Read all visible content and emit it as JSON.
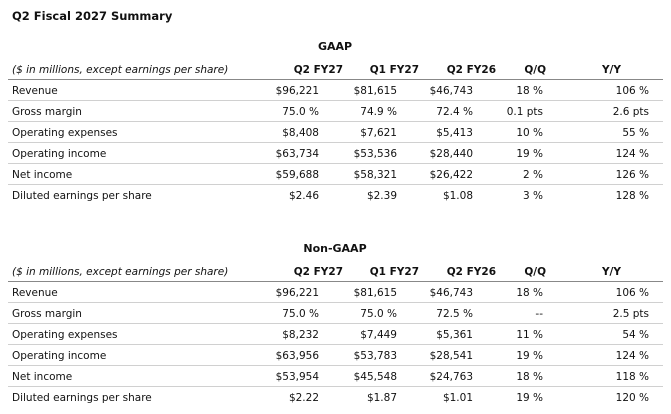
{
  "title": "Q2 Fiscal 2027 Summary",
  "sections": [
    {
      "heading": "GAAP",
      "columns": [
        "($ in millions, except earnings per share)",
        "Q2 FY27",
        "Q1 FY27",
        "Q2 FY26",
        "Q/Q",
        "Y/Y"
      ],
      "rows": [
        [
          "Revenue",
          "$96,221",
          "$81,615",
          "$46,743",
          "18 %",
          "106 %"
        ],
        [
          "Gross margin",
          "75.0 %",
          "74.9 %",
          "72.4 %",
          "0.1 pts",
          "2.6 pts"
        ],
        [
          "Operating expenses",
          "$8,408",
          "$7,621",
          "$5,413",
          "10 %",
          "55 %"
        ],
        [
          "Operating income",
          "$63,734",
          "$53,536",
          "$28,440",
          "19 %",
          "124 %"
        ],
        [
          "Net income",
          "$59,688",
          "$58,321",
          "$26,422",
          "2 %",
          "126 %"
        ],
        [
          "Diluted earnings per share",
          "$2.46",
          "$2.39",
          "$1.08",
          "3 %",
          "128 %"
        ]
      ]
    },
    {
      "heading": "Non-GAAP",
      "columns": [
        "($ in millions, except earnings per share)",
        "Q2 FY27",
        "Q1 FY27",
        "Q2 FY26",
        "Q/Q",
        "Y/Y"
      ],
      "rows": [
        [
          "Revenue",
          "$96,221",
          "$81,615",
          "$46,743",
          "18 %",
          "106 %"
        ],
        [
          "Gross margin",
          "75.0 %",
          "75.0 %",
          "72.5 %",
          "--",
          "2.5 pts"
        ],
        [
          "Operating expenses",
          "$8,232",
          "$7,449",
          "$5,361",
          "11 %",
          "54 %"
        ],
        [
          "Operating income",
          "$63,956",
          "$53,783",
          "$28,541",
          "19 %",
          "124 %"
        ],
        [
          "Net income",
          "$53,954",
          "$45,548",
          "$24,763",
          "18 %",
          "118 %"
        ],
        [
          "Diluted earnings per share",
          "$2.22",
          "$1.87",
          "$1.01",
          "19 %",
          "120 %"
        ]
      ]
    }
  ]
}
